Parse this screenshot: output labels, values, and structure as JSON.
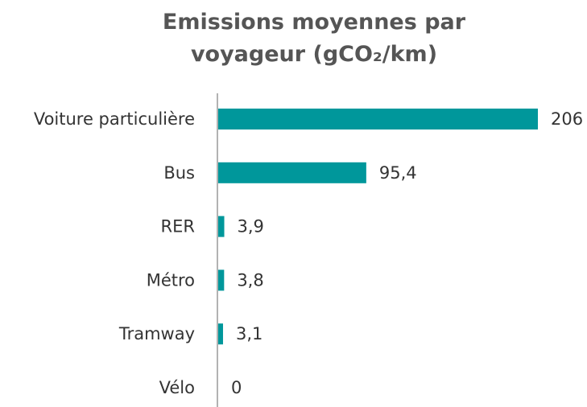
{
  "chart_data": {
    "type": "bar",
    "orientation": "horizontal",
    "title": "Emissions moyennes par voyageur (gCO₂/km)",
    "categories": [
      "Voiture particulière",
      "Bus",
      "RER",
      "Métro",
      "Tramway",
      "Vélo"
    ],
    "values": [
      206,
      95.4,
      3.9,
      3.8,
      3.1,
      0
    ],
    "value_labels": [
      "206",
      "95,4",
      "3,9",
      "3,8",
      "3,1",
      "0"
    ],
    "color": "#00979b"
  }
}
